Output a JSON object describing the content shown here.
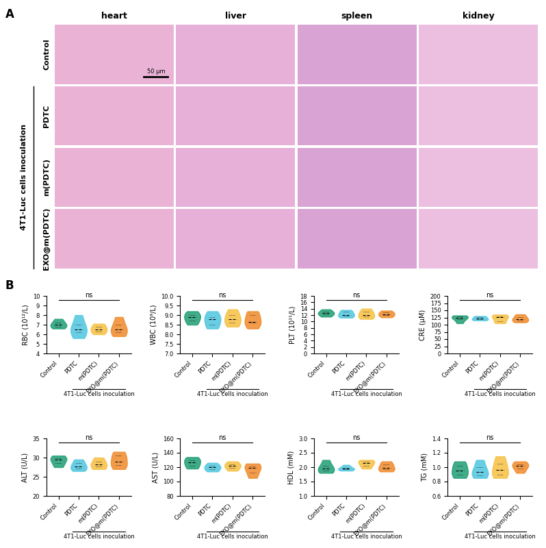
{
  "panel_a": {
    "label": "A",
    "columns": [
      "heart",
      "liver",
      "spleen",
      "kidney"
    ],
    "rows": [
      "Control",
      "PDTC",
      "m(PDTC)",
      "EXO@m(PDTC)"
    ],
    "group_label": "4T1-Luc cells inoculation",
    "scale_bar": "50 μm"
  },
  "panel_b_label": "B",
  "chart_data": [
    {
      "type": "violin",
      "ylabel": "RBC (10¹²/L)",
      "annotation": "ns",
      "group_label": "4T1-Luc cells inoculation",
      "categories": [
        "Control",
        "PDTC",
        "m(PDTC)",
        "EXO@m(PDTC)"
      ],
      "colors": [
        "#1f9e74",
        "#4fc6e0",
        "#f6c042",
        "#f08a2a"
      ],
      "values": [
        [
          6.6,
          6.8,
          7.0,
          7.2,
          7.6
        ],
        [
          5.6,
          6.2,
          6.5,
          7.0,
          8.0
        ],
        [
          6.0,
          6.3,
          6.5,
          6.8,
          7.1
        ],
        [
          5.8,
          6.2,
          6.5,
          7.0,
          7.8
        ]
      ],
      "ylim": [
        4,
        10
      ],
      "yticks": [
        4,
        5,
        6,
        7,
        8,
        9,
        10
      ]
    },
    {
      "type": "violin",
      "ylabel": "WBC (10⁹/L)",
      "annotation": "ns",
      "group_label": "4T1-Luc cells inoculation",
      "categories": [
        "Control",
        "PDTC",
        "m(PDTC)",
        "EXO@m(PDTC)"
      ],
      "colors": [
        "#1f9e74",
        "#4fc6e0",
        "#f6c042",
        "#f08a2a"
      ],
      "values": [
        [
          8.5,
          8.7,
          8.9,
          9.0,
          9.2
        ],
        [
          8.3,
          8.5,
          8.8,
          8.9,
          9.2
        ],
        [
          8.4,
          8.6,
          8.8,
          9.0,
          9.3
        ],
        [
          8.3,
          8.6,
          8.65,
          9.0,
          9.2
        ]
      ],
      "ylim": [
        7.0,
        10.0
      ],
      "yticks": [
        {
          "value": 7.0,
          "label": "7.0"
        },
        {
          "value": 7.5,
          "label": "7.5"
        },
        {
          "value": 8.0,
          "label": "8.0"
        },
        {
          "value": 8.5,
          "label": "8.5"
        },
        {
          "value": 9.0,
          "label": "9.0"
        },
        {
          "value": 9.5,
          "label": "9.5"
        },
        {
          "value": 10.0,
          "label": "10.0"
        }
      ]
    },
    {
      "type": "violin",
      "ylabel": "PLT (10¹¹/L)",
      "annotation": "ns",
      "group_label": "4T1-Luc cells inoculation",
      "categories": [
        "Control",
        "PDTC",
        "m(PDTC)",
        "EXO@m(PDTC)"
      ],
      "colors": [
        "#1f9e74",
        "#4fc6e0",
        "#f6c042",
        "#f08a2a"
      ],
      "values": [
        [
          11.5,
          12.2,
          12.6,
          13.0,
          13.8
        ],
        [
          11.2,
          11.8,
          12.1,
          13.0,
          13.6
        ],
        [
          10.8,
          11.5,
          12.1,
          13.0,
          14.0
        ],
        [
          11.3,
          11.9,
          12.3,
          12.8,
          13.4
        ]
      ],
      "ylim": [
        0,
        18
      ],
      "yticks": [
        0,
        2,
        4,
        6,
        8,
        10,
        12,
        14,
        16,
        18
      ]
    },
    {
      "type": "violin",
      "ylabel": "CRE (μM)",
      "annotation": "ns",
      "group_label": "4T1-Luc cells inoculation",
      "categories": [
        "Control",
        "PDTC",
        "m(PDTC)",
        "EXO@m(PDTC)"
      ],
      "colors": [
        "#1f9e74",
        "#4fc6e0",
        "#f6c042",
        "#f08a2a"
      ],
      "values": [
        [
          105,
          118,
          125,
          128,
          132
        ],
        [
          115,
          118,
          121,
          126,
          130
        ],
        [
          105,
          112,
          127,
          128,
          135
        ],
        [
          108,
          115,
          118,
          127,
          136
        ]
      ],
      "ylim": [
        0,
        200
      ],
      "yticks": [
        0,
        25,
        50,
        75,
        100,
        125,
        150,
        175,
        200
      ]
    },
    {
      "type": "violin",
      "ylabel": "ALT (U/L)",
      "annotation": "ns",
      "group_label": "4T1-Luc cells inoculation",
      "categories": [
        "Control",
        "PDTC",
        "m(PDTC)",
        "EXO@m(PDTC)"
      ],
      "colors": [
        "#1f9e74",
        "#4fc6e0",
        "#f6c042",
        "#f08a2a"
      ],
      "values": [
        [
          27.5,
          28.5,
          29.5,
          29.8,
          30.5
        ],
        [
          26.5,
          27.2,
          27.6,
          28.5,
          29.5
        ],
        [
          27.0,
          27.6,
          28.2,
          29.0,
          30.0
        ],
        [
          27.0,
          28.0,
          29.0,
          30.5,
          31.5
        ]
      ],
      "ylim": [
        20,
        35
      ],
      "yticks": [
        20,
        25,
        30,
        35
      ]
    },
    {
      "type": "violin",
      "ylabel": "AST (U/L)",
      "annotation": "ns",
      "group_label": "4T1-Luc cells inoculation",
      "categories": [
        "Control",
        "PDTC",
        "m(PDTC)",
        "EXO@m(PDTC)"
      ],
      "colors": [
        "#1f9e74",
        "#4fc6e0",
        "#f6c042",
        "#f08a2a"
      ],
      "values": [
        [
          118,
          122,
          127,
          130,
          134
        ],
        [
          114,
          117,
          120,
          122,
          126
        ],
        [
          115,
          119,
          122,
          124,
          128
        ],
        [
          105,
          112,
          119,
          121,
          125
        ]
      ],
      "ylim": [
        80,
        160
      ],
      "yticks": [
        80,
        100,
        120,
        140,
        160
      ]
    },
    {
      "type": "violin",
      "ylabel": "HDL (mM)",
      "annotation": "ns",
      "group_label": "4T1-Luc cells inoculation",
      "categories": [
        "Control",
        "PDTC",
        "m(PDTC)",
        "EXO@m(PDTC)"
      ],
      "colors": [
        "#1f9e74",
        "#4fc6e0",
        "#f6c042",
        "#f08a2a"
      ],
      "values": [
        [
          1.8,
          1.87,
          1.95,
          2.05,
          2.25
        ],
        [
          1.88,
          1.92,
          1.95,
          1.98,
          2.08
        ],
        [
          1.95,
          2.05,
          2.15,
          2.2,
          2.25
        ],
        [
          1.85,
          1.92,
          1.98,
          2.1,
          2.2
        ]
      ],
      "ylim": [
        1.0,
        3.0
      ],
      "yticks": [
        {
          "value": 1.0,
          "label": "1.0"
        },
        1.5,
        {
          "value": 2.0,
          "label": "2.0"
        },
        2.5,
        {
          "value": 3.0,
          "label": "3.0"
        }
      ]
    },
    {
      "type": "violin",
      "ylabel": "TG (mM)",
      "annotation": "ns",
      "group_label": "4T1-Luc cells inoculation",
      "categories": [
        "Control",
        "PDTC",
        "m(PDTC)",
        "EXO@m(PDTC)"
      ],
      "colors": [
        "#1f9e74",
        "#4fc6e0",
        "#f6c042",
        "#f08a2a"
      ],
      "values": [
        [
          0.85,
          0.9,
          0.95,
          1.02,
          1.08
        ],
        [
          0.85,
          0.89,
          0.93,
          1.0,
          1.1
        ],
        [
          0.85,
          0.9,
          0.96,
          1.05,
          1.15
        ],
        [
          0.92,
          0.98,
          1.02,
          1.04,
          1.08
        ]
      ],
      "ylim": [
        0.6,
        1.4
      ],
      "yticks": [
        0.6,
        0.8,
        {
          "value": 1.0,
          "label": "1.0"
        },
        1.2,
        1.4
      ]
    }
  ]
}
